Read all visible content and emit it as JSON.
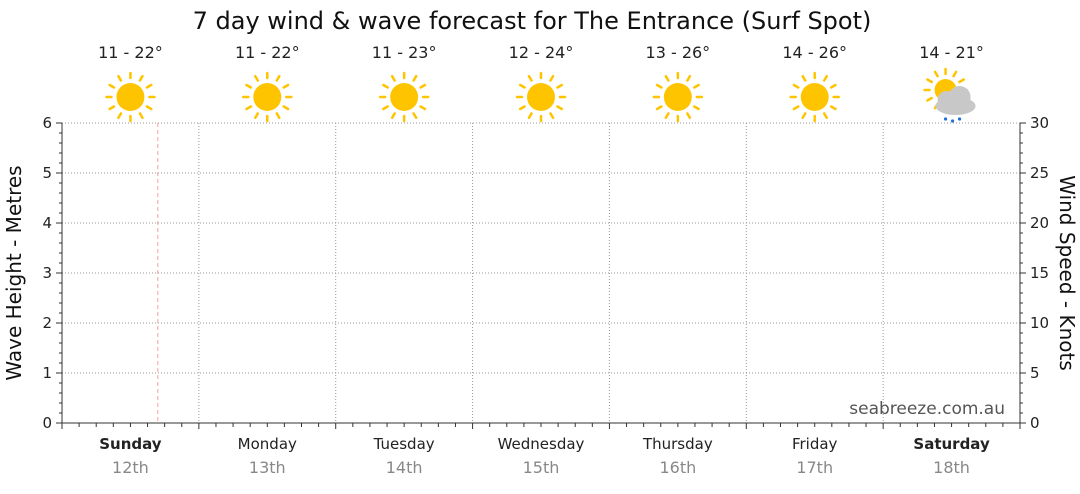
{
  "chart_data": {
    "type": "line",
    "title": "7 day wind & wave forecast for The Entrance (Surf Spot)",
    "ylabel_left": "Wave Height - Metres",
    "ylabel_right": "Wind Speed - Knots",
    "ylim_left": [
      0,
      6
    ],
    "ylim_right": [
      0,
      30
    ],
    "yticks_left": [
      "0",
      "1",
      "2",
      "3",
      "4",
      "5",
      "6"
    ],
    "yticks_right": [
      "0",
      "5",
      "10",
      "15",
      "20",
      "25",
      "30"
    ],
    "grid": true,
    "days": [
      {
        "day": "Sunday",
        "date": "12th",
        "temp": "11 - 22°",
        "icon": "sun-icon",
        "bold": true
      },
      {
        "day": "Monday",
        "date": "13th",
        "temp": "11 - 22°",
        "icon": "sun-icon",
        "bold": false
      },
      {
        "day": "Tuesday",
        "date": "14th",
        "temp": "11 - 23°",
        "icon": "sun-icon",
        "bold": false
      },
      {
        "day": "Wednesday",
        "date": "15th",
        "temp": "12 - 24°",
        "icon": "sun-icon",
        "bold": false
      },
      {
        "day": "Thursday",
        "date": "16th",
        "temp": "13 - 26°",
        "icon": "sun-icon",
        "bold": false
      },
      {
        "day": "Friday",
        "date": "17th",
        "temp": "14 - 26°",
        "icon": "sun-icon",
        "bold": false
      },
      {
        "day": "Saturday",
        "date": "18th",
        "temp": "14 - 21°",
        "icon": "partly-cloudy-shower-icon",
        "bold": true
      }
    ],
    "current_time_fraction_of_first_day": 0.7,
    "series": []
  },
  "watermark": "seabreeze.com.au",
  "colors": {
    "sun": "#FFC400",
    "cloud": "#C8C8C8",
    "rain": "#1E6FD9",
    "now_line": "#F4A0A0",
    "grid": "#999999"
  }
}
